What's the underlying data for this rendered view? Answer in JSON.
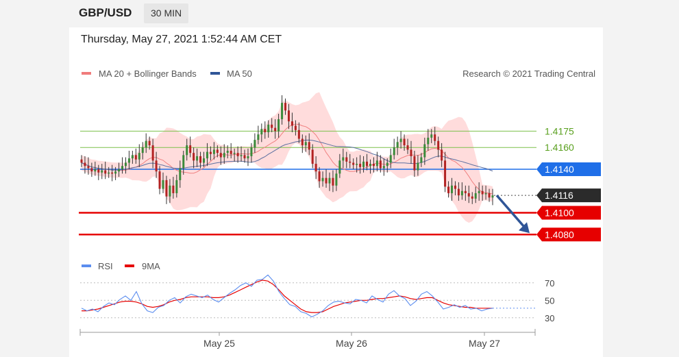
{
  "header": {
    "symbol": "GBP/USD",
    "timeframe": "30 MIN"
  },
  "datetime": "Thursday, May 27, 2021 1:52:44 AM CET",
  "legend_main": [
    {
      "label": "MA 20 + Bollinger Bands",
      "color": "#f07c7c"
    },
    {
      "label": "MA 50",
      "color": "#2f5597"
    }
  ],
  "copyright": "Research © 2021 Trading Central",
  "legend_rsi": [
    {
      "label": "RSI",
      "color": "#5b8def"
    },
    {
      "label": "9MA",
      "color": "#e60000"
    }
  ],
  "colors": {
    "up": "#3a8a3a",
    "down": "#b22222",
    "band": "#ffd6d6",
    "ma20": "#f08080",
    "ma50": "#5b6fa0",
    "resistance": "#7cc04a",
    "pivot": "#1f6fe8",
    "support": "#e60000",
    "last": "#2b2b2b"
  },
  "chart_data": {
    "type": "candlestick",
    "instrument": "GBP/USD",
    "interval": "30 MIN",
    "x_ticks": [
      "May 25",
      "May 26",
      "May 27"
    ],
    "price_range": [
      1.4055,
      1.4225
    ],
    "levels": [
      {
        "value": "1.4175",
        "kind": "resistance"
      },
      {
        "value": "1.4160",
        "kind": "resistance"
      },
      {
        "value": "1.4140",
        "kind": "pivot"
      },
      {
        "value": "1.4116",
        "kind": "last"
      },
      {
        "value": "1.4100",
        "kind": "support"
      },
      {
        "value": "1.4080",
        "kind": "support"
      }
    ],
    "close_path": [
      1.4146,
      1.4143,
      1.4141,
      1.4138,
      1.414,
      1.4137,
      1.4139,
      1.4136,
      1.4137,
      1.4136,
      1.4138,
      1.414,
      1.4143,
      1.4146,
      1.415,
      1.4153,
      1.4149,
      1.4155,
      1.416,
      1.4166,
      1.4162,
      1.4148,
      1.4138,
      1.4122,
      1.413,
      1.4115,
      1.4125,
      1.4118,
      1.413,
      1.4141,
      1.4153,
      1.4162,
      1.4155,
      1.4148,
      1.4152,
      1.4146,
      1.415,
      1.4156,
      1.4154,
      1.4158,
      1.4155,
      1.4151,
      1.4155,
      1.4157,
      1.4154,
      1.4155,
      1.4152,
      1.4153,
      1.415,
      1.4152,
      1.416,
      1.4167,
      1.4172,
      1.4177,
      1.4174,
      1.4181,
      1.4178,
      1.4175,
      1.4186,
      1.4201,
      1.4194,
      1.4184,
      1.418,
      1.4176,
      1.4168,
      1.4162,
      1.4165,
      1.4158,
      1.4145,
      1.4138,
      1.4129,
      1.4132,
      1.4127,
      1.4132,
      1.4125,
      1.4136,
      1.4148,
      1.4151,
      1.4147,
      1.4146,
      1.4144,
      1.4145,
      1.4142,
      1.4147,
      1.4143,
      1.4145,
      1.4143,
      1.4148,
      1.4141,
      1.4143,
      1.4146,
      1.4153,
      1.416,
      1.4165,
      1.4168,
      1.4162,
      1.4158,
      1.4152,
      1.4139,
      1.4146,
      1.4151,
      1.4163,
      1.4169,
      1.4172,
      1.4166,
      1.4158,
      1.4148,
      1.4124,
      1.4118,
      1.4125,
      1.4122,
      1.4116,
      1.412,
      1.4118,
      1.4115,
      1.4113,
      1.4118,
      1.412,
      1.4117,
      1.4118,
      1.4114,
      1.4116
    ],
    "rsi": {
      "ticks": [
        70,
        50,
        30
      ],
      "range": [
        22,
        80
      ],
      "rsi_path": [
        41,
        38,
        40,
        37,
        43,
        47,
        45,
        51,
        55,
        50,
        60,
        46,
        38,
        36,
        42,
        44,
        50,
        53,
        47,
        54,
        57,
        55,
        53,
        56,
        51,
        48,
        53,
        58,
        62,
        67,
        70,
        66,
        73,
        74,
        79,
        72,
        60,
        52,
        45,
        43,
        37,
        35,
        31,
        34,
        38,
        44,
        48,
        49,
        47,
        46,
        51,
        50,
        47,
        55,
        51,
        48,
        57,
        61,
        55,
        52,
        44,
        49,
        57,
        60,
        55,
        48,
        40,
        42,
        45,
        42,
        44,
        40,
        41,
        38,
        40,
        41
      ],
      "ma9_path": [
        38,
        38,
        39,
        40,
        42,
        44,
        46,
        48,
        49,
        49,
        48,
        46,
        43,
        42,
        43,
        45,
        48,
        50,
        51,
        53,
        54,
        54,
        54,
        54,
        53,
        53,
        54,
        56,
        59,
        62,
        65,
        68,
        71,
        73,
        72,
        68,
        62,
        55,
        50,
        45,
        40,
        37,
        36,
        36,
        37,
        40,
        43,
        45,
        47,
        48,
        49,
        50,
        50,
        51,
        52,
        52,
        53,
        54,
        55,
        54,
        52,
        51,
        52,
        53,
        53,
        50,
        47,
        45,
        44,
        43,
        42,
        42,
        41,
        41,
        41,
        41
      ]
    }
  }
}
